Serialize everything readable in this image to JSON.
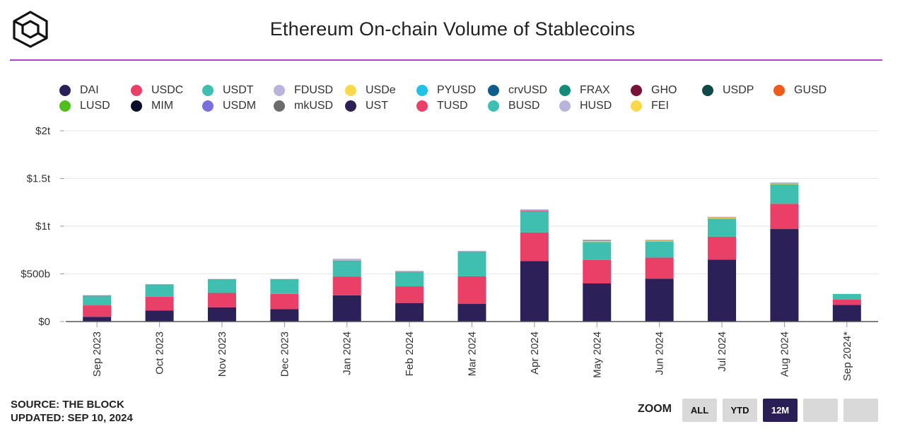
{
  "header": {
    "title": "Ethereum On-chain Volume of Stablecoins"
  },
  "footer": {
    "source": "SOURCE: THE BLOCK",
    "updated": "UPDATED: SEP 10, 2024"
  },
  "zoom": {
    "label": "ZOOM",
    "buttons": [
      {
        "label": "ALL",
        "active": false
      },
      {
        "label": "YTD",
        "active": false
      },
      {
        "label": "12M",
        "active": true
      },
      {
        "label": "",
        "active": false
      },
      {
        "label": "",
        "active": false
      }
    ]
  },
  "chart_data": {
    "type": "bar",
    "stacked": true,
    "title": "Ethereum On-chain Volume of Stablecoins",
    "xlabel": "",
    "ylabel": "",
    "ylim": [
      0,
      2000
    ],
    "y_unit": "billions USD",
    "y_ticks": [
      {
        "value": 0,
        "label": "$0"
      },
      {
        "value": 500,
        "label": "$500b"
      },
      {
        "value": 1000,
        "label": "$1t"
      },
      {
        "value": 1500,
        "label": "$1.5t"
      },
      {
        "value": 2000,
        "label": "$2t"
      }
    ],
    "grid": true,
    "legend_position": "top",
    "categories": [
      "Sep 2023",
      "Oct 2023",
      "Nov 2023",
      "Dec 2023",
      "Jan 2024",
      "Feb 2024",
      "Mar 2024",
      "Apr 2024",
      "May 2024",
      "Jun 2024",
      "Jul 2024",
      "Aug 2024",
      "Sep 2024*"
    ],
    "series": [
      {
        "name": "DAI",
        "color": "#2b2158",
        "values": [
          50,
          115,
          150,
          130,
          275,
          195,
          185,
          635,
          400,
          450,
          650,
          970,
          175
        ]
      },
      {
        "name": "USDC",
        "color": "#ea4068",
        "values": [
          120,
          145,
          150,
          160,
          195,
          175,
          290,
          300,
          245,
          220,
          240,
          265,
          55
        ]
      },
      {
        "name": "USDT",
        "color": "#3ebfb0",
        "values": [
          100,
          125,
          140,
          150,
          165,
          150,
          255,
          220,
          190,
          170,
          190,
          205,
          60
        ]
      },
      {
        "name": "FDUSD",
        "color": "#b8b4dc",
        "values": [
          0,
          0,
          0,
          0,
          0,
          0,
          0,
          0,
          0,
          0,
          0,
          0,
          0
        ]
      },
      {
        "name": "USDe",
        "color": "#f9d84a",
        "values": [
          0,
          0,
          0,
          0,
          0,
          0,
          0,
          0,
          8,
          10,
          10,
          10,
          0
        ]
      },
      {
        "name": "PYUSD",
        "color": "#1fc1e8",
        "values": [
          0,
          0,
          0,
          0,
          0,
          0,
          0,
          0,
          0,
          0,
          0,
          0,
          0
        ]
      },
      {
        "name": "crvUSD",
        "color": "#0e5c8c",
        "values": [
          0,
          0,
          0,
          0,
          0,
          0,
          0,
          0,
          0,
          0,
          0,
          0,
          0
        ]
      },
      {
        "name": "FRAX",
        "color": "#138c7a",
        "values": [
          0,
          0,
          0,
          0,
          0,
          0,
          0,
          0,
          0,
          0,
          0,
          0,
          0
        ]
      },
      {
        "name": "GHO",
        "color": "#7a1238",
        "values": [
          0,
          0,
          0,
          0,
          0,
          0,
          0,
          0,
          0,
          0,
          0,
          0,
          0
        ]
      },
      {
        "name": "USDP",
        "color": "#0f4a48",
        "values": [
          0,
          0,
          0,
          0,
          0,
          0,
          0,
          0,
          0,
          0,
          0,
          0,
          0
        ]
      },
      {
        "name": "GUSD",
        "color": "#f25a1c",
        "values": [
          0,
          0,
          0,
          0,
          0,
          0,
          0,
          0,
          0,
          0,
          0,
          0,
          0
        ]
      },
      {
        "name": "LUSD",
        "color": "#4fbf1e",
        "values": [
          0,
          0,
          0,
          0,
          0,
          0,
          0,
          0,
          0,
          0,
          0,
          0,
          0
        ]
      },
      {
        "name": "MIM",
        "color": "#0b0e2a",
        "values": [
          0,
          0,
          0,
          0,
          0,
          0,
          0,
          0,
          0,
          0,
          0,
          0,
          0
        ]
      },
      {
        "name": "USDM",
        "color": "#7b6fdd",
        "values": [
          0,
          0,
          0,
          0,
          0,
          0,
          0,
          0,
          0,
          0,
          0,
          0,
          0
        ]
      },
      {
        "name": "mkUSD",
        "color": "#6c6c6c",
        "values": [
          0,
          0,
          0,
          0,
          0,
          0,
          0,
          0,
          0,
          0,
          0,
          0,
          0
        ]
      },
      {
        "name": "UST",
        "color": "#2b2158",
        "values": [
          0,
          0,
          0,
          0,
          0,
          0,
          0,
          0,
          0,
          0,
          0,
          0,
          0
        ]
      },
      {
        "name": "TUSD",
        "color": "#ea4068",
        "values": [
          2,
          2,
          2,
          2,
          2,
          2,
          2,
          8,
          6,
          2,
          2,
          2,
          0
        ]
      },
      {
        "name": "BUSD",
        "color": "#3ebfb0",
        "values": [
          2,
          2,
          2,
          2,
          2,
          2,
          2,
          2,
          2,
          2,
          2,
          2,
          0
        ]
      },
      {
        "name": "HUSD",
        "color": "#b8b4dc",
        "values": [
          3,
          3,
          3,
          3,
          20,
          8,
          8,
          12,
          8,
          4,
          4,
          4,
          0
        ]
      },
      {
        "name": "FEI",
        "color": "#f9d84a",
        "values": [
          0,
          0,
          0,
          0,
          0,
          0,
          0,
          0,
          0,
          0,
          0,
          0,
          0
        ]
      }
    ]
  }
}
